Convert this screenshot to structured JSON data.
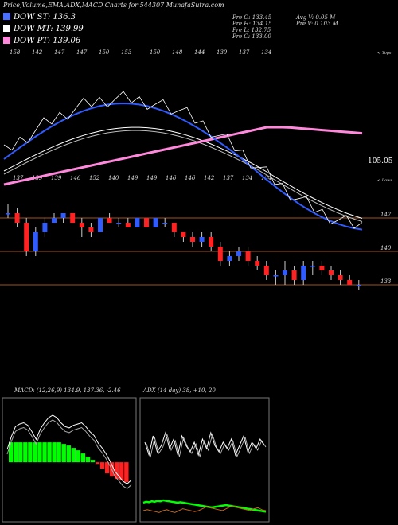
{
  "title": "Price,Volume,EMA,ADX,MACD Charts for 544307 MunafaSutra.com",
  "legend": [
    {
      "label": "DOW ST: 136.3",
      "color": "#4a6fff"
    },
    {
      "label": "DOW MT: 139.99",
      "color": "#ffffff"
    },
    {
      "label": "DOW PT: 139.06",
      "color": "#ff88dd"
    }
  ],
  "stats": {
    "col1": [
      "Pre O: 133.45",
      "Pre H: 134.15",
      "Pre L: 132.75",
      "Pre C: 133.00"
    ],
    "col2": [
      "Avg V: 0.05 M",
      "Pre V: 0.103 M"
    ]
  },
  "macd_label": "MACD: (12,26,9) 134.9, 137.36, -2.46",
  "adx_label": "ADX (14 day) 38, +10, 20",
  "scale_labels": {
    "top_tag": "< Tops",
    "low_tag": "< Lows",
    "price_105": "105.05"
  },
  "colors": {
    "up": "#2f5bff",
    "down": "#ff2222",
    "ema_fast": "#2f5bff",
    "ema_slow": "#ff88dd",
    "macd_hist": "#00ff00",
    "macd_neg": "#ff2222",
    "level_line": "#a0521f"
  },
  "chart_data": {
    "type": "candlestick",
    "top_labels": [
      "158",
      "142",
      "147",
      "147",
      "150",
      "153",
      "150",
      "148",
      "144",
      "139",
      "137",
      "134"
    ],
    "low_labels": [
      "137",
      "139",
      "139",
      "146",
      "152",
      "140",
      "149",
      "149",
      "146",
      "146",
      "142",
      "137",
      "134",
      "134"
    ],
    "right_axis": [
      "147",
      "140",
      "133"
    ],
    "candles": [
      [
        148,
        150,
        147,
        148
      ],
      [
        148,
        149,
        145,
        146
      ],
      [
        146,
        147,
        139,
        140
      ],
      [
        140,
        145,
        139,
        144
      ],
      [
        144,
        147,
        143,
        146
      ],
      [
        146,
        148,
        146,
        147
      ],
      [
        147,
        148,
        146,
        148
      ],
      [
        148,
        148,
        146,
        146
      ],
      [
        146,
        147,
        143,
        145
      ],
      [
        145,
        146,
        143,
        144
      ],
      [
        144,
        147,
        144,
        147
      ],
      [
        147,
        148,
        146,
        146
      ],
      [
        146,
        147,
        145,
        146
      ],
      [
        146,
        147,
        145,
        145
      ],
      [
        145,
        147,
        145,
        147
      ],
      [
        147,
        147,
        145,
        145
      ],
      [
        145,
        147,
        145,
        147
      ],
      [
        146,
        147,
        145,
        146
      ],
      [
        146,
        146,
        143,
        144
      ],
      [
        144,
        144,
        142,
        143
      ],
      [
        143,
        144,
        141,
        142
      ],
      [
        142,
        144,
        141,
        143
      ],
      [
        143,
        144,
        140,
        141
      ],
      [
        141,
        142,
        137,
        138
      ],
      [
        138,
        140,
        137,
        139
      ],
      [
        139,
        141,
        138,
        140
      ],
      [
        140,
        141,
        137,
        138
      ],
      [
        138,
        139,
        136,
        137
      ],
      [
        137,
        138,
        134,
        135
      ],
      [
        135,
        136,
        133,
        135
      ],
      [
        135,
        138,
        133,
        136
      ],
      [
        136,
        137,
        133,
        134
      ],
      [
        134,
        138,
        133,
        137
      ],
      [
        137,
        138,
        135,
        137
      ],
      [
        137,
        138,
        135,
        136
      ],
      [
        136,
        137,
        134,
        135
      ],
      [
        135,
        136,
        133,
        134
      ],
      [
        134,
        135,
        133,
        133
      ],
      [
        133,
        134,
        132,
        133
      ]
    ],
    "macd_hist": [
      5,
      5,
      5,
      5,
      5,
      5,
      5,
      5,
      5,
      5,
      5,
      4.6,
      4.2,
      3.6,
      3,
      2.2,
      1.4,
      0.6,
      -0.4,
      -1.6,
      -2.8,
      -3.6,
      -4.2,
      -4.6,
      -5
    ],
    "macd_line": [
      20,
      40,
      56,
      60,
      62,
      58,
      48,
      36,
      52,
      62,
      70,
      74,
      70,
      62,
      56,
      54,
      58,
      60,
      62,
      56,
      48,
      42,
      30,
      22,
      12,
      0,
      -14,
      -22,
      -30,
      -34,
      -28
    ],
    "adx_values": [
      60,
      20,
      80,
      30,
      50,
      90,
      40,
      70,
      20,
      80,
      50,
      30,
      60,
      20,
      70,
      40,
      90,
      50,
      30,
      60,
      40,
      70,
      20,
      50,
      80,
      30,
      60,
      40,
      70,
      50
    ],
    "plus_di": [
      50,
      52,
      51,
      53,
      52,
      54,
      53,
      55,
      54,
      53,
      52,
      51,
      50,
      51,
      50,
      49,
      48,
      47,
      46,
      45,
      44,
      43,
      42,
      41,
      40,
      41,
      42,
      43,
      44,
      45,
      44,
      43,
      42,
      41,
      40,
      39,
      38,
      37,
      36,
      35,
      34,
      33,
      32,
      31
    ],
    "minus_di": [
      20,
      21,
      20,
      19,
      18,
      20,
      21,
      19,
      18,
      20,
      22,
      21,
      20,
      19,
      20,
      22,
      24,
      23,
      22,
      21,
      20,
      22,
      24,
      25,
      23,
      22,
      21,
      20,
      22,
      23,
      21,
      20
    ]
  }
}
